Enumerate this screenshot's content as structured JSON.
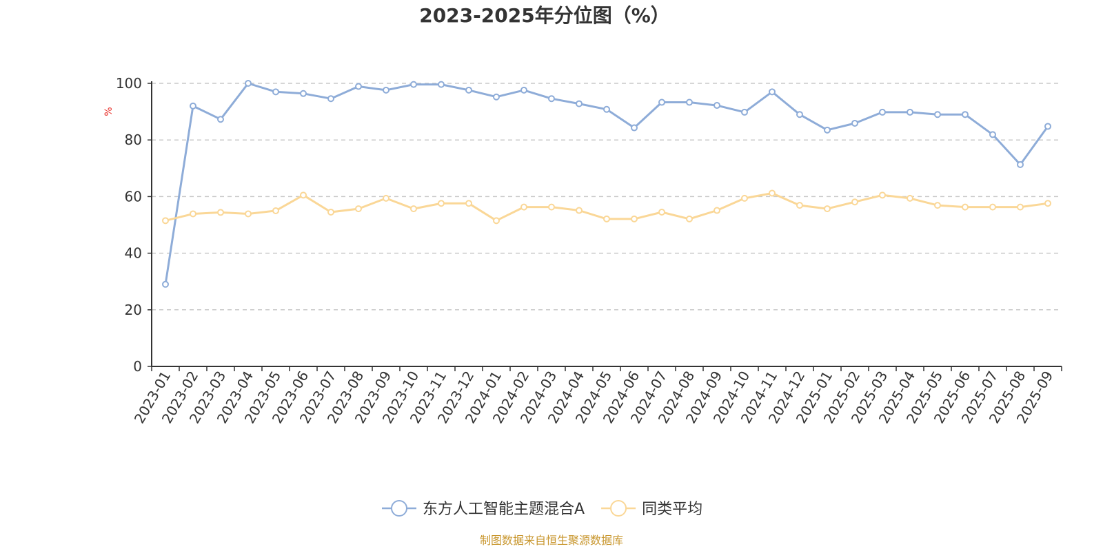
{
  "chart_data": {
    "type": "line",
    "title": "2023-2025年分位图（%）",
    "ylabel": "%",
    "ylim": [
      0,
      100
    ],
    "yticks": [
      0,
      20,
      40,
      60,
      80,
      100
    ],
    "categories": [
      "2023-01",
      "2023-02",
      "2023-03",
      "2023-04",
      "2023-05",
      "2023-06",
      "2023-07",
      "2023-08",
      "2023-09",
      "2023-10",
      "2023-11",
      "2023-12",
      "2024-01",
      "2024-02",
      "2024-03",
      "2024-04",
      "2024-05",
      "2024-06",
      "2024-07",
      "2024-08",
      "2024-09",
      "2024-10",
      "2024-11",
      "2024-12",
      "2025-01",
      "2025-02",
      "2025-03",
      "2025-04",
      "2025-05",
      "2025-06",
      "2025-07",
      "2025-08",
      "2025-09"
    ],
    "series": [
      {
        "name": "东方人工智能主题混合A",
        "color": "#8eacd8",
        "values": [
          29,
          92,
          87.3,
          100,
          97,
          96.4,
          94.6,
          98.9,
          97.6,
          99.6,
          99.6,
          97.6,
          95.2,
          97.6,
          94.6,
          92.8,
          90.8,
          84.3,
          93.3,
          93.3,
          92.2,
          89.8,
          97,
          89,
          83.5,
          85.9,
          89.8,
          89.8,
          89,
          89,
          81.9,
          71.3,
          84.8
        ]
      },
      {
        "name": "同类平均",
        "color": "#fad797",
        "values": [
          51.5,
          53.9,
          54.4,
          53.9,
          55,
          60.5,
          54.5,
          55.7,
          59.4,
          55.7,
          57.6,
          57.6,
          51.5,
          56.3,
          56.3,
          55.1,
          52.1,
          52.1,
          54.5,
          52.1,
          55.1,
          59.4,
          61.2,
          56.9,
          55.7,
          58.1,
          60.5,
          59.4,
          56.9,
          56.3,
          56.3,
          56.3,
          57.6
        ]
      }
    ],
    "grid": true,
    "legend": "bottom-center",
    "axis_color": "#333333",
    "grid_color": "#c8c8c8"
  },
  "source_note": "制图数据来自恒生聚源数据库",
  "source_color": "#c8962d",
  "unit_color": "#e8302a"
}
